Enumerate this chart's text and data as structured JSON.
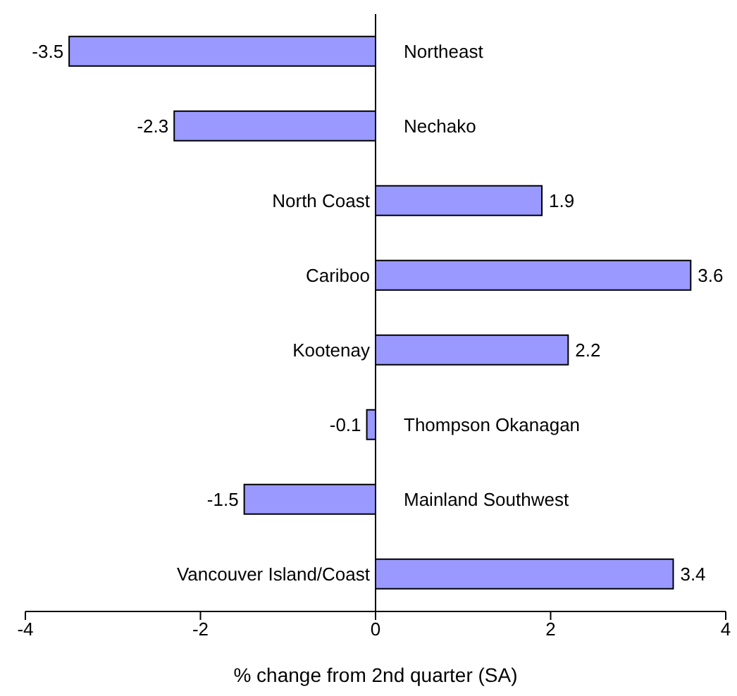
{
  "chart_data": {
    "type": "bar",
    "orientation": "horizontal",
    "xlabel": "% change from 2nd quarter (SA)",
    "categories": [
      "Northeast",
      "Nechako",
      "North Coast",
      "Cariboo",
      "Kootenay",
      "Thompson Okanagan",
      "Mainland Southwest",
      "Vancouver Island/Coast"
    ],
    "values": [
      -3.5,
      -2.3,
      1.9,
      3.6,
      2.2,
      -0.1,
      -1.5,
      3.4
    ],
    "color": "#9999ff",
    "xlim": [
      -4,
      4
    ],
    "xticks": [
      -4,
      -2,
      0,
      2,
      4
    ],
    "data_labels": true
  }
}
